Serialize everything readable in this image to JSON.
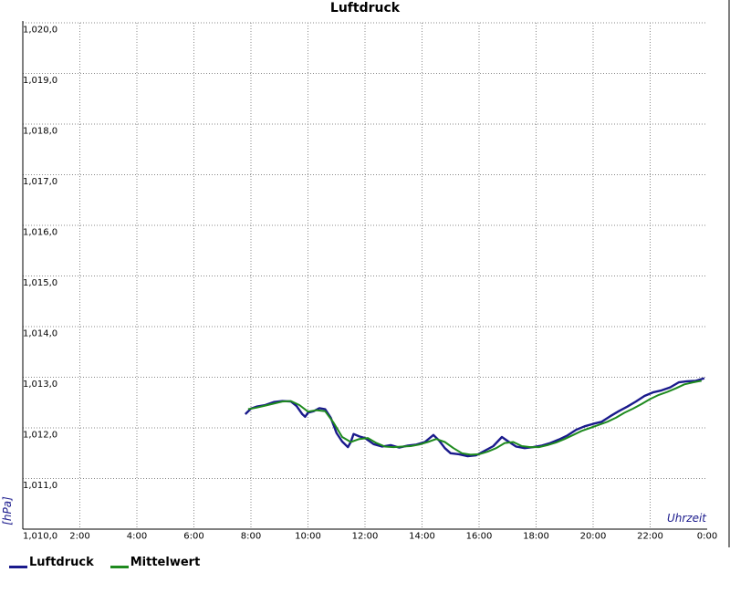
{
  "chart_data": {
    "type": "line",
    "title": "Luftdruck",
    "xlabel": "Uhrzeit",
    "ylabel": "[hPa]",
    "x_unit": "hours",
    "xlim": [
      0,
      24
    ],
    "ylim": [
      1010.0,
      1020.0
    ],
    "x_ticks": [
      "2:00",
      "4:00",
      "6:00",
      "8:00",
      "10:00",
      "12:00",
      "14:00",
      "16:00",
      "18:00",
      "20:00",
      "22:00",
      "0:00"
    ],
    "y_ticks": [
      "1,010,0",
      "1,011,0",
      "1,012,0",
      "1,013,0",
      "1,014,0",
      "1,015,0",
      "1,016,0",
      "1,017,0",
      "1,018,0",
      "1,019,0",
      "1,020,0"
    ],
    "grid": true,
    "legend_position": "bottom-left",
    "series": [
      {
        "name": "Luftdruck",
        "color": "#1a1a8c",
        "x": [
          7.8,
          8.0,
          8.2,
          8.5,
          8.8,
          9.1,
          9.4,
          9.6,
          9.8,
          9.9,
          10.0,
          10.2,
          10.4,
          10.6,
          10.8,
          11.0,
          11.2,
          11.4,
          11.5,
          11.6,
          11.8,
          12.0,
          12.3,
          12.6,
          12.9,
          13.2,
          13.5,
          13.8,
          14.1,
          14.4,
          14.6,
          14.8,
          15.0,
          15.3,
          15.6,
          15.9,
          16.2,
          16.5,
          16.8,
          17.0,
          17.3,
          17.6,
          17.9,
          18.2,
          18.5,
          18.8,
          19.1,
          19.4,
          19.7,
          20.0,
          20.3,
          20.6,
          20.9,
          21.2,
          21.5,
          21.8,
          22.1,
          22.4,
          22.7,
          23.0,
          23.3,
          23.6,
          23.9
        ],
        "y": [
          1012.27,
          1012.38,
          1012.42,
          1012.45,
          1012.51,
          1012.53,
          1012.52,
          1012.43,
          1012.27,
          1012.22,
          1012.3,
          1012.33,
          1012.39,
          1012.37,
          1012.2,
          1011.9,
          1011.73,
          1011.62,
          1011.72,
          1011.88,
          1011.83,
          1011.8,
          1011.68,
          1011.63,
          1011.66,
          1011.61,
          1011.65,
          1011.67,
          1011.72,
          1011.86,
          1011.75,
          1011.6,
          1011.5,
          1011.48,
          1011.44,
          1011.46,
          1011.55,
          1011.64,
          1011.82,
          1011.74,
          1011.63,
          1011.6,
          1011.62,
          1011.65,
          1011.7,
          1011.77,
          1011.85,
          1011.96,
          1012.03,
          1012.08,
          1012.12,
          1012.23,
          1012.33,
          1012.42,
          1012.52,
          1012.63,
          1012.7,
          1012.74,
          1012.8,
          1012.9,
          1012.92,
          1012.93,
          1012.98
        ]
      },
      {
        "name": "Mittelwert",
        "color": "#1e8a1e",
        "x": [
          7.9,
          8.2,
          8.5,
          8.8,
          9.1,
          9.4,
          9.7,
          10.0,
          10.3,
          10.6,
          10.9,
          11.2,
          11.5,
          11.8,
          12.1,
          12.4,
          12.7,
          13.0,
          13.3,
          13.6,
          13.9,
          14.2,
          14.5,
          14.8,
          15.1,
          15.4,
          15.7,
          16.0,
          16.3,
          16.6,
          16.9,
          17.2,
          17.5,
          17.8,
          18.1,
          18.4,
          18.7,
          19.0,
          19.3,
          19.6,
          19.9,
          20.2,
          20.5,
          20.8,
          21.1,
          21.4,
          21.7,
          22.0,
          22.3,
          22.6,
          22.9,
          23.2,
          23.5,
          23.8
        ],
        "y": [
          1012.37,
          1012.4,
          1012.44,
          1012.48,
          1012.52,
          1012.53,
          1012.45,
          1012.32,
          1012.35,
          1012.33,
          1012.1,
          1011.82,
          1011.72,
          1011.78,
          1011.8,
          1011.7,
          1011.63,
          1011.62,
          1011.63,
          1011.64,
          1011.67,
          1011.72,
          1011.78,
          1011.72,
          1011.6,
          1011.5,
          1011.47,
          1011.48,
          1011.53,
          1011.6,
          1011.7,
          1011.72,
          1011.64,
          1011.62,
          1011.62,
          1011.66,
          1011.71,
          1011.78,
          1011.86,
          1011.94,
          1012.0,
          1012.06,
          1012.12,
          1012.2,
          1012.3,
          1012.38,
          1012.47,
          1012.57,
          1012.65,
          1012.71,
          1012.78,
          1012.86,
          1012.9,
          1012.93
        ]
      }
    ]
  }
}
